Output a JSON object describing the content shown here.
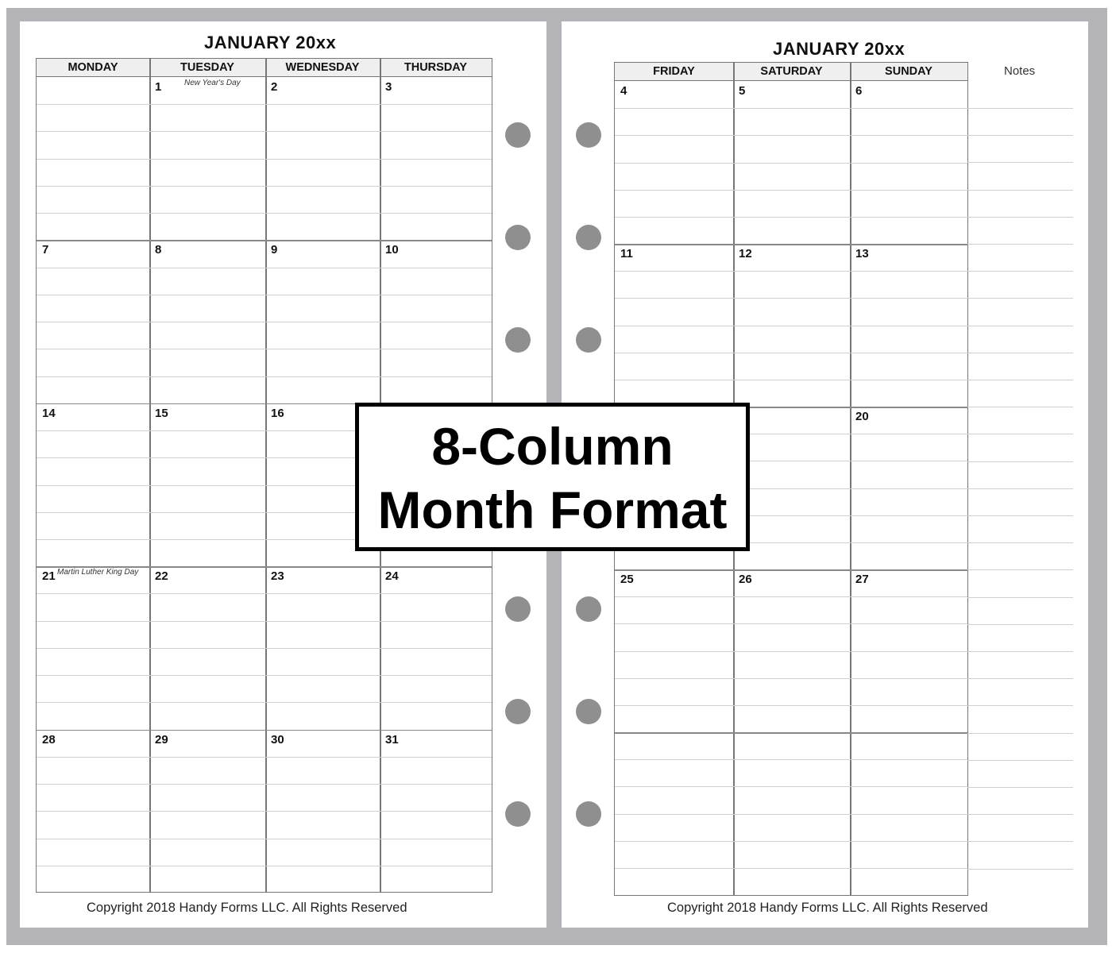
{
  "left_page": {
    "title": "JANUARY 20xx",
    "columns": [
      "MONDAY",
      "TUESDAY",
      "WEDNESDAY",
      "THURSDAY"
    ],
    "weeks": [
      [
        "",
        "1",
        "2",
        "3"
      ],
      [
        "7",
        "8",
        "9",
        "10"
      ],
      [
        "14",
        "15",
        "16",
        ""
      ],
      [
        "21",
        "22",
        "23",
        "24"
      ],
      [
        "28",
        "29",
        "30",
        "31"
      ]
    ],
    "holidays": [
      {
        "week": 0,
        "col": 1,
        "label": "New Year's Day"
      },
      {
        "week": 3,
        "col": 0,
        "label": "Martin Luther King Day"
      }
    ],
    "copyright": "Copyright 2018 Handy Forms LLC. All Rights Reserved"
  },
  "right_page": {
    "title": "JANUARY 20xx",
    "columns": [
      "FRIDAY",
      "SATURDAY",
      "SUNDAY"
    ],
    "notes_label": "Notes",
    "weeks": [
      [
        "4",
        "5",
        "6"
      ],
      [
        "11",
        "12",
        "13"
      ],
      [
        "",
        "",
        "20"
      ],
      [
        "25",
        "26",
        "27"
      ],
      [
        "",
        "",
        ""
      ]
    ],
    "copyright": "Copyright 2018 Handy Forms LLC. All Rights Reserved"
  },
  "overlay": {
    "line1": "8-Column",
    "line2": "Month Format"
  },
  "colors": {
    "frame": "#b4b4b8",
    "hole": "#8f8f8f",
    "grid": "#777777"
  }
}
